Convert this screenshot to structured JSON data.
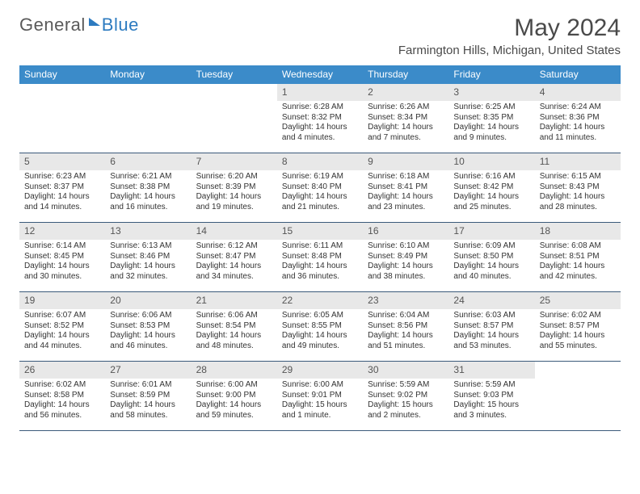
{
  "logo": {
    "part1": "General",
    "part2": "Blue"
  },
  "title": "May 2024",
  "location": "Farmington Hills, Michigan, United States",
  "colors": {
    "header_bg": "#3b8bc9",
    "daynum_bg": "#e8e8e8",
    "week_border": "#3b5a7a",
    "text": "#333333",
    "logo_gray": "#5a5a5a",
    "logo_blue": "#2d7bc0"
  },
  "dow": [
    "Sunday",
    "Monday",
    "Tuesday",
    "Wednesday",
    "Thursday",
    "Friday",
    "Saturday"
  ],
  "weeks": [
    [
      {
        "n": "",
        "sr": "",
        "ss": "",
        "dl": ""
      },
      {
        "n": "",
        "sr": "",
        "ss": "",
        "dl": ""
      },
      {
        "n": "",
        "sr": "",
        "ss": "",
        "dl": ""
      },
      {
        "n": "1",
        "sr": "Sunrise: 6:28 AM",
        "ss": "Sunset: 8:32 PM",
        "dl": "Daylight: 14 hours and 4 minutes."
      },
      {
        "n": "2",
        "sr": "Sunrise: 6:26 AM",
        "ss": "Sunset: 8:34 PM",
        "dl": "Daylight: 14 hours and 7 minutes."
      },
      {
        "n": "3",
        "sr": "Sunrise: 6:25 AM",
        "ss": "Sunset: 8:35 PM",
        "dl": "Daylight: 14 hours and 9 minutes."
      },
      {
        "n": "4",
        "sr": "Sunrise: 6:24 AM",
        "ss": "Sunset: 8:36 PM",
        "dl": "Daylight: 14 hours and 11 minutes."
      }
    ],
    [
      {
        "n": "5",
        "sr": "Sunrise: 6:23 AM",
        "ss": "Sunset: 8:37 PM",
        "dl": "Daylight: 14 hours and 14 minutes."
      },
      {
        "n": "6",
        "sr": "Sunrise: 6:21 AM",
        "ss": "Sunset: 8:38 PM",
        "dl": "Daylight: 14 hours and 16 minutes."
      },
      {
        "n": "7",
        "sr": "Sunrise: 6:20 AM",
        "ss": "Sunset: 8:39 PM",
        "dl": "Daylight: 14 hours and 19 minutes."
      },
      {
        "n": "8",
        "sr": "Sunrise: 6:19 AM",
        "ss": "Sunset: 8:40 PM",
        "dl": "Daylight: 14 hours and 21 minutes."
      },
      {
        "n": "9",
        "sr": "Sunrise: 6:18 AM",
        "ss": "Sunset: 8:41 PM",
        "dl": "Daylight: 14 hours and 23 minutes."
      },
      {
        "n": "10",
        "sr": "Sunrise: 6:16 AM",
        "ss": "Sunset: 8:42 PM",
        "dl": "Daylight: 14 hours and 25 minutes."
      },
      {
        "n": "11",
        "sr": "Sunrise: 6:15 AM",
        "ss": "Sunset: 8:43 PM",
        "dl": "Daylight: 14 hours and 28 minutes."
      }
    ],
    [
      {
        "n": "12",
        "sr": "Sunrise: 6:14 AM",
        "ss": "Sunset: 8:45 PM",
        "dl": "Daylight: 14 hours and 30 minutes."
      },
      {
        "n": "13",
        "sr": "Sunrise: 6:13 AM",
        "ss": "Sunset: 8:46 PM",
        "dl": "Daylight: 14 hours and 32 minutes."
      },
      {
        "n": "14",
        "sr": "Sunrise: 6:12 AM",
        "ss": "Sunset: 8:47 PM",
        "dl": "Daylight: 14 hours and 34 minutes."
      },
      {
        "n": "15",
        "sr": "Sunrise: 6:11 AM",
        "ss": "Sunset: 8:48 PM",
        "dl": "Daylight: 14 hours and 36 minutes."
      },
      {
        "n": "16",
        "sr": "Sunrise: 6:10 AM",
        "ss": "Sunset: 8:49 PM",
        "dl": "Daylight: 14 hours and 38 minutes."
      },
      {
        "n": "17",
        "sr": "Sunrise: 6:09 AM",
        "ss": "Sunset: 8:50 PM",
        "dl": "Daylight: 14 hours and 40 minutes."
      },
      {
        "n": "18",
        "sr": "Sunrise: 6:08 AM",
        "ss": "Sunset: 8:51 PM",
        "dl": "Daylight: 14 hours and 42 minutes."
      }
    ],
    [
      {
        "n": "19",
        "sr": "Sunrise: 6:07 AM",
        "ss": "Sunset: 8:52 PM",
        "dl": "Daylight: 14 hours and 44 minutes."
      },
      {
        "n": "20",
        "sr": "Sunrise: 6:06 AM",
        "ss": "Sunset: 8:53 PM",
        "dl": "Daylight: 14 hours and 46 minutes."
      },
      {
        "n": "21",
        "sr": "Sunrise: 6:06 AM",
        "ss": "Sunset: 8:54 PM",
        "dl": "Daylight: 14 hours and 48 minutes."
      },
      {
        "n": "22",
        "sr": "Sunrise: 6:05 AM",
        "ss": "Sunset: 8:55 PM",
        "dl": "Daylight: 14 hours and 49 minutes."
      },
      {
        "n": "23",
        "sr": "Sunrise: 6:04 AM",
        "ss": "Sunset: 8:56 PM",
        "dl": "Daylight: 14 hours and 51 minutes."
      },
      {
        "n": "24",
        "sr": "Sunrise: 6:03 AM",
        "ss": "Sunset: 8:57 PM",
        "dl": "Daylight: 14 hours and 53 minutes."
      },
      {
        "n": "25",
        "sr": "Sunrise: 6:02 AM",
        "ss": "Sunset: 8:57 PM",
        "dl": "Daylight: 14 hours and 55 minutes."
      }
    ],
    [
      {
        "n": "26",
        "sr": "Sunrise: 6:02 AM",
        "ss": "Sunset: 8:58 PM",
        "dl": "Daylight: 14 hours and 56 minutes."
      },
      {
        "n": "27",
        "sr": "Sunrise: 6:01 AM",
        "ss": "Sunset: 8:59 PM",
        "dl": "Daylight: 14 hours and 58 minutes."
      },
      {
        "n": "28",
        "sr": "Sunrise: 6:00 AM",
        "ss": "Sunset: 9:00 PM",
        "dl": "Daylight: 14 hours and 59 minutes."
      },
      {
        "n": "29",
        "sr": "Sunrise: 6:00 AM",
        "ss": "Sunset: 9:01 PM",
        "dl": "Daylight: 15 hours and 1 minute."
      },
      {
        "n": "30",
        "sr": "Sunrise: 5:59 AM",
        "ss": "Sunset: 9:02 PM",
        "dl": "Daylight: 15 hours and 2 minutes."
      },
      {
        "n": "31",
        "sr": "Sunrise: 5:59 AM",
        "ss": "Sunset: 9:03 PM",
        "dl": "Daylight: 15 hours and 3 minutes."
      },
      {
        "n": "",
        "sr": "",
        "ss": "",
        "dl": ""
      }
    ]
  ]
}
